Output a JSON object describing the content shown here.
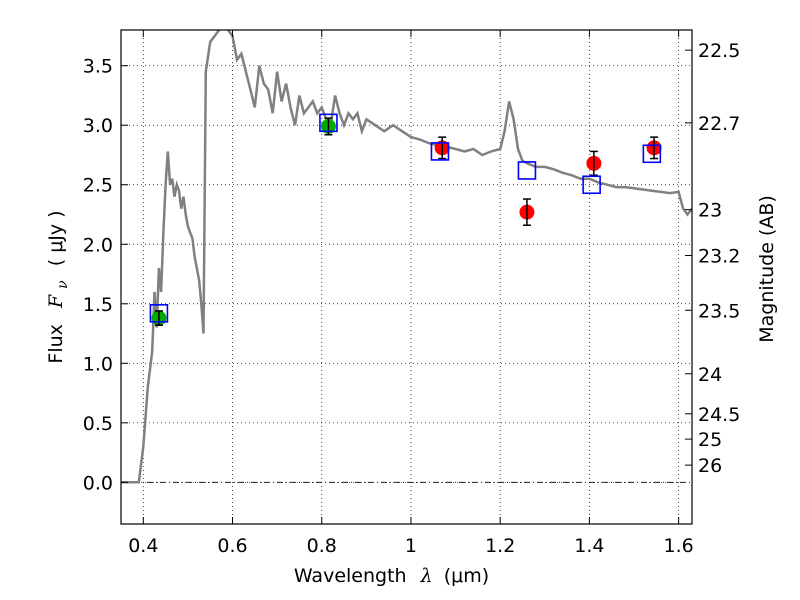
{
  "chart_data": {
    "type": "scatter",
    "xlabel": {
      "prefix": "Wavelength",
      "symbol": "λ",
      "unit": "(μm)"
    },
    "ylabel": {
      "prefix": "Flux",
      "symbol": "F",
      "subscript": "ν",
      "unit": "( μJy )"
    },
    "ylabel_right": "Magnitude (AB)",
    "xlim": [
      0.35,
      1.63
    ],
    "ylim": [
      -0.35,
      3.8
    ],
    "x_ticks": [
      {
        "value": 0.4,
        "label": "0.4"
      },
      {
        "value": 0.6,
        "label": "0.6"
      },
      {
        "value": 0.8,
        "label": "0.8"
      },
      {
        "value": 1.0,
        "label": "1"
      },
      {
        "value": 1.2,
        "label": "1.2"
      },
      {
        "value": 1.4,
        "label": "1.4"
      },
      {
        "value": 1.6,
        "label": "1.6"
      }
    ],
    "y_ticks": [
      {
        "value": 0.0,
        "label": "0.0"
      },
      {
        "value": 0.5,
        "label": "0.5"
      },
      {
        "value": 1.0,
        "label": "1.0"
      },
      {
        "value": 1.5,
        "label": "1.5"
      },
      {
        "value": 2.0,
        "label": "2.0"
      },
      {
        "value": 2.5,
        "label": "2.5"
      },
      {
        "value": 3.0,
        "label": "3.0"
      },
      {
        "value": 3.5,
        "label": "3.5"
      }
    ],
    "y_right_ticks": [
      {
        "label": "22.5",
        "mag": 22.5
      },
      {
        "label": "22.7",
        "mag": 22.7
      },
      {
        "label": "23",
        "mag": 23.0
      },
      {
        "label": "23.2",
        "mag": 23.2
      },
      {
        "label": "23.5",
        "mag": 23.5
      },
      {
        "label": "24",
        "mag": 24.0
      },
      {
        "label": "24.5",
        "mag": 24.5
      },
      {
        "label": "25",
        "mag": 25.0
      },
      {
        "label": "26",
        "mag": 26.0
      }
    ],
    "grid": true,
    "series": [
      {
        "kind": "model",
        "color": "#808080",
        "x": [
          0.35,
          0.39,
          0.4,
          0.41,
          0.42,
          0.425,
          0.43,
          0.435,
          0.44,
          0.445,
          0.45,
          0.455,
          0.46,
          0.465,
          0.47,
          0.475,
          0.48,
          0.485,
          0.49,
          0.495,
          0.5,
          0.505,
          0.51,
          0.515,
          0.52,
          0.525,
          0.53,
          0.535,
          0.54,
          0.55,
          0.56,
          0.57,
          0.58,
          0.59,
          0.6,
          0.61,
          0.62,
          0.63,
          0.64,
          0.65,
          0.66,
          0.67,
          0.68,
          0.69,
          0.7,
          0.71,
          0.72,
          0.73,
          0.74,
          0.75,
          0.76,
          0.77,
          0.78,
          0.79,
          0.8,
          0.81,
          0.82,
          0.83,
          0.84,
          0.85,
          0.86,
          0.87,
          0.88,
          0.89,
          0.9,
          0.92,
          0.94,
          0.96,
          0.98,
          1.0,
          1.02,
          1.04,
          1.06,
          1.08,
          1.1,
          1.12,
          1.14,
          1.16,
          1.18,
          1.2,
          1.21,
          1.22,
          1.23,
          1.24,
          1.25,
          1.26,
          1.28,
          1.3,
          1.32,
          1.34,
          1.36,
          1.38,
          1.4,
          1.42,
          1.44,
          1.46,
          1.48,
          1.5,
          1.52,
          1.54,
          1.56,
          1.58,
          1.6,
          1.61,
          1.62,
          1.63
        ],
        "y": [
          0.0,
          0.0,
          0.3,
          0.8,
          1.1,
          1.6,
          1.3,
          1.8,
          1.6,
          2.1,
          2.5,
          2.78,
          2.5,
          2.55,
          2.4,
          2.5,
          2.45,
          2.3,
          2.4,
          2.25,
          2.15,
          2.1,
          2.05,
          1.9,
          1.8,
          1.7,
          1.5,
          1.25,
          3.45,
          3.7,
          3.75,
          3.8,
          3.85,
          3.8,
          3.75,
          3.55,
          3.6,
          3.45,
          3.3,
          3.15,
          3.5,
          3.35,
          3.3,
          3.1,
          3.45,
          3.2,
          3.35,
          3.15,
          3.0,
          3.25,
          3.1,
          3.15,
          3.2,
          3.1,
          3.15,
          3.05,
          3.0,
          3.25,
          3.1,
          3.0,
          3.1,
          3.05,
          3.1,
          2.95,
          3.05,
          3.0,
          2.95,
          3.0,
          2.95,
          2.9,
          2.88,
          2.85,
          2.83,
          2.82,
          2.8,
          2.78,
          2.8,
          2.75,
          2.78,
          2.8,
          2.95,
          3.2,
          3.05,
          2.8,
          2.7,
          2.68,
          2.65,
          2.65,
          2.63,
          2.6,
          2.58,
          2.55,
          2.55,
          2.52,
          2.5,
          2.48,
          2.48,
          2.47,
          2.46,
          2.45,
          2.44,
          2.43,
          2.44,
          2.3,
          2.25,
          2.3
        ]
      },
      {
        "kind": "green-points",
        "color": "#00aa00",
        "points": [
          {
            "x": 0.435,
            "y": 1.38,
            "err": 0.06
          },
          {
            "x": 0.815,
            "y": 2.99,
            "err": 0.07
          }
        ]
      },
      {
        "kind": "red-points",
        "color": "#ff0000",
        "points": [
          {
            "x": 1.07,
            "y": 2.81,
            "err": 0.09
          },
          {
            "x": 1.26,
            "y": 2.27,
            "err": 0.11
          },
          {
            "x": 1.41,
            "y": 2.68,
            "err": 0.1
          },
          {
            "x": 1.545,
            "y": 2.81,
            "err": 0.09
          }
        ]
      },
      {
        "kind": "blue-squares",
        "color": "#0000ff",
        "points": [
          {
            "x": 0.435,
            "y": 1.42
          },
          {
            "x": 0.815,
            "y": 3.02
          },
          {
            "x": 1.065,
            "y": 2.78
          },
          {
            "x": 1.26,
            "y": 2.62
          },
          {
            "x": 1.405,
            "y": 2.5
          },
          {
            "x": 1.54,
            "y": 2.76
          }
        ]
      }
    ]
  }
}
